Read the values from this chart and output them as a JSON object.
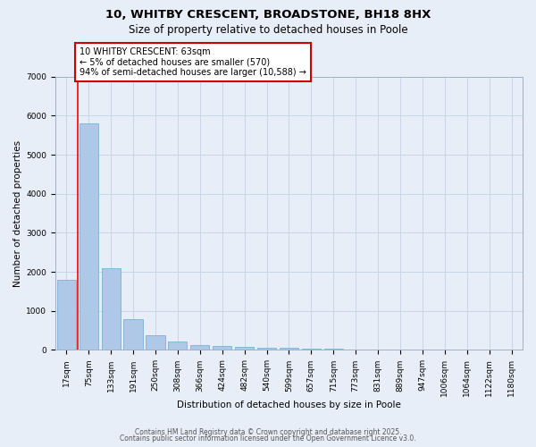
{
  "title_line1": "10, WHITBY CRESCENT, BROADSTONE, BH18 8HX",
  "title_line2": "Size of property relative to detached houses in Poole",
  "xlabel": "Distribution of detached houses by size in Poole",
  "ylabel": "Number of detached properties",
  "categories": [
    "17sqm",
    "75sqm",
    "133sqm",
    "191sqm",
    "250sqm",
    "308sqm",
    "366sqm",
    "424sqm",
    "482sqm",
    "540sqm",
    "599sqm",
    "657sqm",
    "715sqm",
    "773sqm",
    "831sqm",
    "889sqm",
    "947sqm",
    "1006sqm",
    "1064sqm",
    "1122sqm",
    "1180sqm"
  ],
  "values": [
    1800,
    5800,
    2100,
    800,
    375,
    210,
    130,
    105,
    80,
    60,
    50,
    38,
    28,
    20,
    14,
    10,
    8,
    5,
    4,
    3,
    2
  ],
  "bar_color": "#aec8e8",
  "bar_edge_color": "#6aaad4",
  "background_color": "#e8eef8",
  "grid_color": "#c8d4e8",
  "red_line_x": 0.5,
  "annotation_text": "10 WHITBY CRESCENT: 63sqm\n← 5% of detached houses are smaller (570)\n94% of semi-detached houses are larger (10,588) →",
  "annotation_box_color": "#ffffff",
  "annotation_box_edge_color": "#cc0000",
  "ylim": [
    0,
    7000
  ],
  "yticks": [
    0,
    1000,
    2000,
    3000,
    4000,
    5000,
    6000,
    7000
  ],
  "footer_line1": "Contains HM Land Registry data © Crown copyright and database right 2025.",
  "footer_line2": "Contains public sector information licensed under the Open Government Licence v3.0.",
  "title_fontsize": 9.5,
  "subtitle_fontsize": 8.5,
  "axis_label_fontsize": 7.5,
  "tick_fontsize": 6.5,
  "annotation_fontsize": 7,
  "footer_fontsize": 5.5
}
